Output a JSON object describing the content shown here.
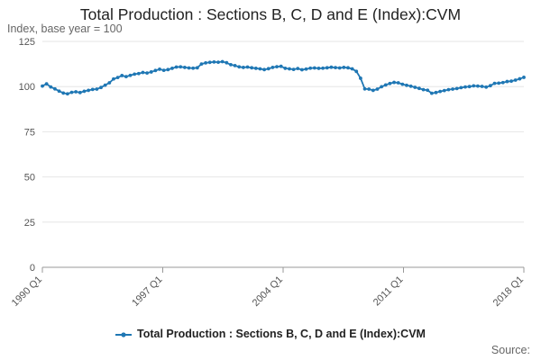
{
  "chart_data": {
    "type": "line",
    "title": "Total Production : Sections B, C, D and E (Index):CVM",
    "ylabel": "Index, base year = 100",
    "xlabel": "",
    "ylim": [
      0,
      125
    ],
    "y_ticks": [
      0,
      25,
      50,
      75,
      100,
      125
    ],
    "x_tick_labels": [
      "1990 Q1",
      "1997 Q1",
      "2004 Q1",
      "2011 Q1",
      "2018 Q1"
    ],
    "grid": true,
    "legend_position": "bottom",
    "line_color": "#1f77b4",
    "series": [
      {
        "name": "Total Production : Sections B, C, D and E (Index):CVM",
        "start": "1990 Q1",
        "frequency": "quarterly",
        "values": [
          100.3,
          101.5,
          99.8,
          98.7,
          97.5,
          96.4,
          96.0,
          96.8,
          97.1,
          96.7,
          97.4,
          97.9,
          98.4,
          98.6,
          99.5,
          100.8,
          102.1,
          104.2,
          105.0,
          106.1,
          105.5,
          106.2,
          106.9,
          107.2,
          107.8,
          107.5,
          108.1,
          108.9,
          109.6,
          109.0,
          109.4,
          110.1,
          110.8,
          110.9,
          110.6,
          110.3,
          110.2,
          110.4,
          112.5,
          113.1,
          113.4,
          113.6,
          113.5,
          113.8,
          113.2,
          112.1,
          111.6,
          110.9,
          110.6,
          110.8,
          110.4,
          110.1,
          109.8,
          109.4,
          109.9,
          110.6,
          111.0,
          111.2,
          110.1,
          109.8,
          109.5,
          110.0,
          109.3,
          109.7,
          110.2,
          110.3,
          110.1,
          110.2,
          110.4,
          110.7,
          110.5,
          110.3,
          110.6,
          110.4,
          109.8,
          108.4,
          104.6,
          98.7,
          98.6,
          97.9,
          98.6,
          99.9,
          100.9,
          101.7,
          102.3,
          102.1,
          101.3,
          100.7,
          100.2,
          99.6,
          99.0,
          98.3,
          98.0,
          96.3,
          96.7,
          97.3,
          97.8,
          98.3,
          98.6,
          98.9,
          99.4,
          99.8,
          100.0,
          100.4,
          100.3,
          100.1,
          99.7,
          100.5,
          101.8,
          101.9,
          102.2,
          102.8,
          103.0,
          103.6,
          104.3,
          105.1
        ]
      }
    ]
  }
}
